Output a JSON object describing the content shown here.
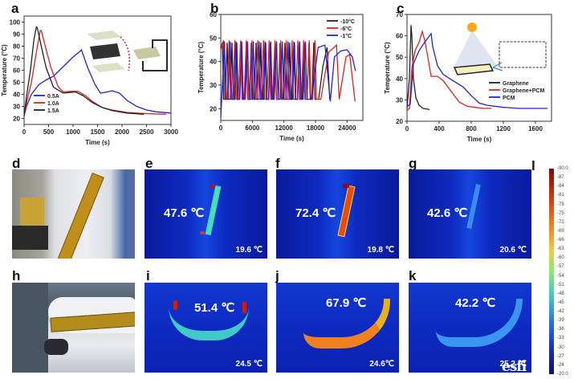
{
  "panels": {
    "a": "a",
    "b": "b",
    "c": "c",
    "d": "d",
    "e": "e",
    "f": "f",
    "g": "g",
    "h": "h",
    "i": "i",
    "j": "j",
    "k": "k",
    "l": "l"
  },
  "chart_data": [
    {
      "id": "a",
      "type": "line",
      "title": "",
      "xlabel": "Time (s)",
      "ylabel": "Temperature (°C)",
      "xlim": [
        0,
        3000
      ],
      "ylim": [
        15,
        105
      ],
      "xticks": [
        0,
        500,
        1000,
        1500,
        2000,
        2500,
        3000
      ],
      "yticks": [
        20,
        30,
        40,
        50,
        60,
        70,
        80,
        90,
        100
      ],
      "legend_position": "bottom-left",
      "series": [
        {
          "name": "0.5A",
          "color": "#2323d8",
          "x": [
            0,
            50,
            150,
            300,
            450,
            600,
            800,
            1000,
            1150,
            1170,
            1300,
            1450,
            1560,
            1700,
            1800,
            1950,
            2100,
            2300,
            2500,
            2700,
            3000
          ],
          "y": [
            22,
            30,
            40,
            48,
            52,
            55,
            63,
            71,
            76,
            77,
            62,
            48,
            41,
            42,
            43,
            41,
            35,
            30,
            27,
            25.5,
            24.5
          ]
        },
        {
          "name": "1.0A",
          "color": "#e02020",
          "x": [
            0,
            60,
            150,
            250,
            330,
            350,
            420,
            550,
            700,
            800,
            950,
            1100,
            1250,
            1400,
            1600,
            1800,
            2100,
            2500,
            2900
          ],
          "y": [
            22,
            35,
            50,
            75,
            93,
            93,
            82,
            62,
            46,
            42,
            42.5,
            42.5,
            39,
            34,
            29,
            27,
            25,
            24,
            23.5
          ]
        },
        {
          "name": "1.5A",
          "color": "#222222",
          "x": [
            0,
            50,
            130,
            200,
            250,
            270,
            350,
            450,
            600,
            800,
            900,
            1050,
            1200,
            1400,
            1600,
            1800,
            2100,
            2450
          ],
          "y": [
            22,
            38,
            60,
            85,
            96,
            95,
            80,
            62,
            46,
            41,
            41.5,
            42,
            39,
            33,
            29,
            26.5,
            24.5,
            23.5
          ]
        }
      ]
    },
    {
      "id": "b",
      "type": "line",
      "title": "",
      "xlabel": "Time (s)",
      "ylabel": "Temperature (°C)",
      "xlim": [
        0,
        27000
      ],
      "ylim": [
        15,
        60
      ],
      "xticks": [
        0,
        6000,
        12000,
        18000,
        24000
      ],
      "yticks": [
        20,
        30,
        40,
        50,
        60
      ],
      "legend_position": "top-right",
      "series": [
        {
          "name": "-10°C",
          "color": "#222222",
          "cycles": {
            "start": 300,
            "end": 18600,
            "high": 48,
            "low": 24,
            "count": 20,
            "tail_x": [
              18600,
              19400,
              20200,
              20700
            ],
            "tail_y": [
              24,
              38,
              46,
              24
            ]
          }
        },
        {
          "name": "-6°C",
          "color": "#e02020",
          "cycles": {
            "start": 500,
            "end": 19000,
            "high": 49,
            "low": 24,
            "count": 17,
            "tail_x": [
              19000,
              20500,
              22000,
              22500,
              23800,
              24500,
              25500
            ],
            "tail_y": [
              24,
              44,
              47,
              24,
              42,
              43,
              23
            ]
          }
        },
        {
          "name": "-1°C",
          "color": "#2323d8",
          "cycles": {
            "start": 700,
            "end": 17200,
            "high": 48.5,
            "low": 24,
            "count": 15,
            "tail_x": [
              17200,
              18500,
              19800,
              20800,
              21600,
              22800,
              24000,
              25000,
              25600
            ],
            "tail_y": [
              24,
              46,
              47,
              23,
              42,
              44.5,
              45,
              42,
              36
            ]
          }
        }
      ]
    },
    {
      "id": "c",
      "type": "line",
      "title": "",
      "xlabel": "Time (s)",
      "ylabel": "Temperature (°C)",
      "xlim": [
        0,
        1800
      ],
      "ylim": [
        20,
        70
      ],
      "xticks": [
        0,
        400,
        800,
        1200,
        1600
      ],
      "yticks": [
        20,
        30,
        40,
        50,
        60,
        70
      ],
      "legend_position": "center-right",
      "series": [
        {
          "name": "Graphene",
          "color": "#222222",
          "x": [
            0,
            30,
            50,
            60,
            80,
            110,
            150,
            200,
            280
          ],
          "y": [
            26,
            40,
            65,
            60,
            40,
            31,
            27.5,
            26,
            25.5
          ]
        },
        {
          "name": "Graphene+PCM",
          "color": "#e02020",
          "x": [
            0,
            30,
            60,
            100,
            150,
            190,
            220,
            260,
            300,
            380,
            450,
            550,
            650,
            750,
            850,
            950,
            1050
          ],
          "y": [
            25,
            26,
            45,
            53,
            57,
            62,
            58,
            50,
            41,
            41,
            39,
            34,
            29,
            27,
            26.5,
            26,
            26
          ]
        },
        {
          "name": "PCM",
          "color": "#2323d8",
          "x": [
            0,
            40,
            80,
            150,
            220,
            300,
            320,
            380,
            450,
            550,
            700,
            800,
            900,
            1000,
            1200,
            1400,
            1750
          ],
          "y": [
            27,
            28,
            47,
            53,
            57,
            61,
            55,
            46,
            42,
            39.5,
            36,
            32,
            28.5,
            27.5,
            26.5,
            26,
            26
          ]
        }
      ]
    }
  ],
  "thermal": {
    "e": {
      "max": "47.6 ℃",
      "ambient": "19.6 ℃"
    },
    "f": {
      "max": "72.4 ℃",
      "ambient": "19.8 ℃"
    },
    "g": {
      "max": "42.6 ℃",
      "ambient": "20.6 ℃"
    },
    "i": {
      "max": "51.4 ℃",
      "ambient": "24.5 ℃"
    },
    "j": {
      "max": "67.9 ℃",
      "ambient": "24.6℃"
    },
    "k": {
      "max": "42.2 ℃",
      "ambient": "25.2 ℃"
    }
  },
  "colorbar": {
    "ticks": [
      "90.0",
      "87",
      "84",
      "81",
      "78",
      "75",
      "72",
      "69",
      "66",
      "63",
      "60",
      "57",
      "54",
      "51",
      "48",
      "45",
      "42",
      "39",
      "36",
      "33",
      "30",
      "27",
      "24",
      "20.0"
    ]
  },
  "watermark": "esfi"
}
